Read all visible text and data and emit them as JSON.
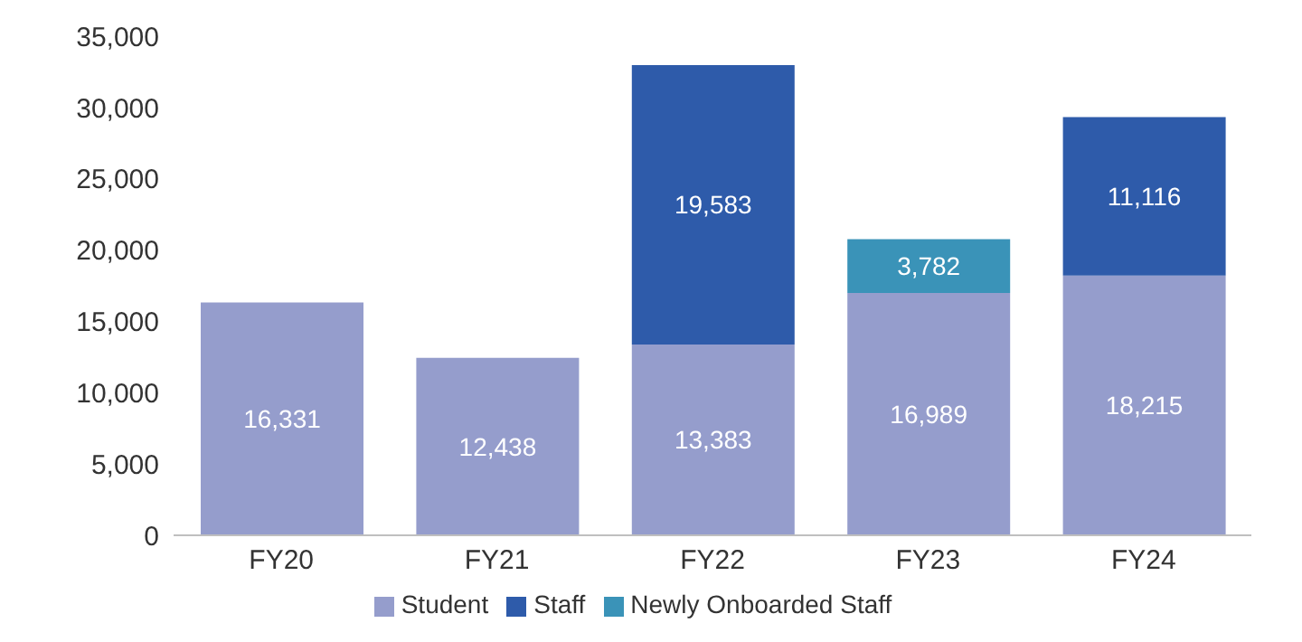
{
  "chart_data": {
    "type": "bar",
    "stacked": true,
    "categories": [
      "FY20",
      "FY21",
      "FY22",
      "FY23",
      "FY24"
    ],
    "series": [
      {
        "name": "Student",
        "color": "#959dcc",
        "values": [
          16331,
          12438,
          13383,
          16989,
          18215
        ],
        "value_labels": [
          "16,331",
          "12,438",
          "13,383",
          "16,989",
          "18,215"
        ]
      },
      {
        "name": "Staff",
        "color": "#2e5baa",
        "values": [
          null,
          null,
          19583,
          null,
          11116
        ],
        "value_labels": [
          null,
          null,
          "19,583",
          null,
          "11,116"
        ]
      },
      {
        "name": "Newly Onboarded Staff",
        "color": "#3a93b8",
        "values": [
          null,
          null,
          null,
          3782,
          null
        ],
        "value_labels": [
          null,
          null,
          null,
          "3,782",
          null
        ]
      }
    ],
    "ylim": [
      0,
      35000
    ],
    "yticks": [
      {
        "value": 0,
        "label": "0"
      },
      {
        "value": 5000,
        "label": "5,000"
      },
      {
        "value": 10000,
        "label": "10,000"
      },
      {
        "value": 15000,
        "label": "15,000"
      },
      {
        "value": 20000,
        "label": "20,000"
      },
      {
        "value": 25000,
        "label": "25,000"
      },
      {
        "value": 30000,
        "label": "30,000"
      },
      {
        "value": 35000,
        "label": "35,000"
      }
    ],
    "grid": false,
    "legend": "bottom"
  }
}
